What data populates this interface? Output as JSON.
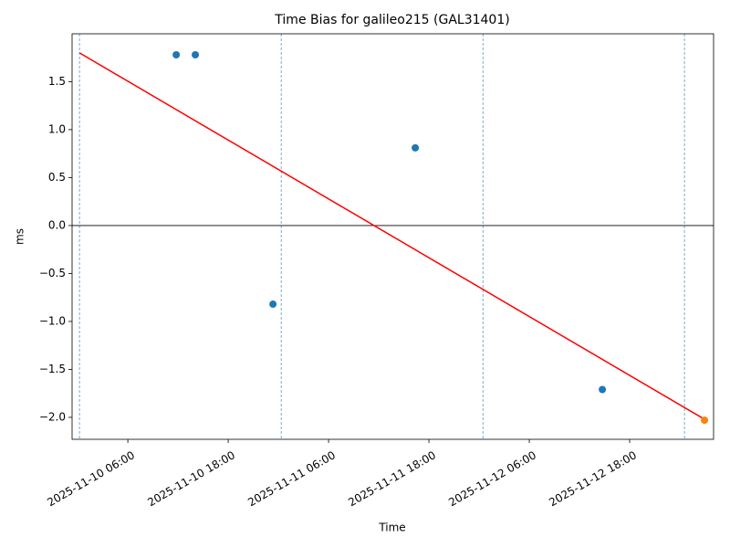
{
  "chart_data": {
    "type": "scatter",
    "title": "Time Bias for galileo215 (GAL31401)",
    "x_label": "Time",
    "y_label": "ms",
    "series": [
      {
        "color": "#1f77b4",
        "x": [
          "2025-11-10 11:47",
          "2025-11-10 14:04",
          "2025-11-10 23:21",
          "2025-11-11 16:22",
          "2025-11-12 14:44"
        ],
        "values": [
          1.78,
          1.78,
          -0.82,
          0.81,
          -1.71
        ]
      },
      {
        "color": "#ff7f0e",
        "x": [
          "2025-11-13 02:57"
        ],
        "values": [
          -2.03
        ]
      }
    ],
    "trend": {
      "color": "#ff0000",
      "x": [
        "2025-11-10 00:13",
        "2025-11-13 02:57"
      ],
      "values": [
        1.8,
        -2.02
      ]
    },
    "vlines": {
      "color": "#1f77b4",
      "x": [
        "2025-11-10 00:13",
        "2025-11-11 00:20",
        "2025-11-12 00:27",
        "2025-11-13 00:33"
      ]
    },
    "hline": 0,
    "xlim": [
      "2025-11-09 23:20",
      "2025-11-13 04:02"
    ],
    "xticks": [
      "2025-11-10 06:00",
      "2025-11-10 18:00",
      "2025-11-11 06:00",
      "2025-11-11 18:00",
      "2025-11-12 06:00",
      "2025-11-12 18:00"
    ],
    "ylim": [
      -2.229,
      1.999
    ],
    "yticks": [
      {
        "value": -2,
        "label": "−2.0"
      },
      {
        "value": -1.5,
        "label": "−1.5"
      },
      {
        "value": -1,
        "label": "−1.0"
      },
      {
        "value": -0.5,
        "label": "−0.5"
      },
      {
        "value": 0,
        "label": "0.0"
      },
      0.5,
      {
        "value": 1,
        "label": "1.0"
      },
      1.5
    ]
  }
}
